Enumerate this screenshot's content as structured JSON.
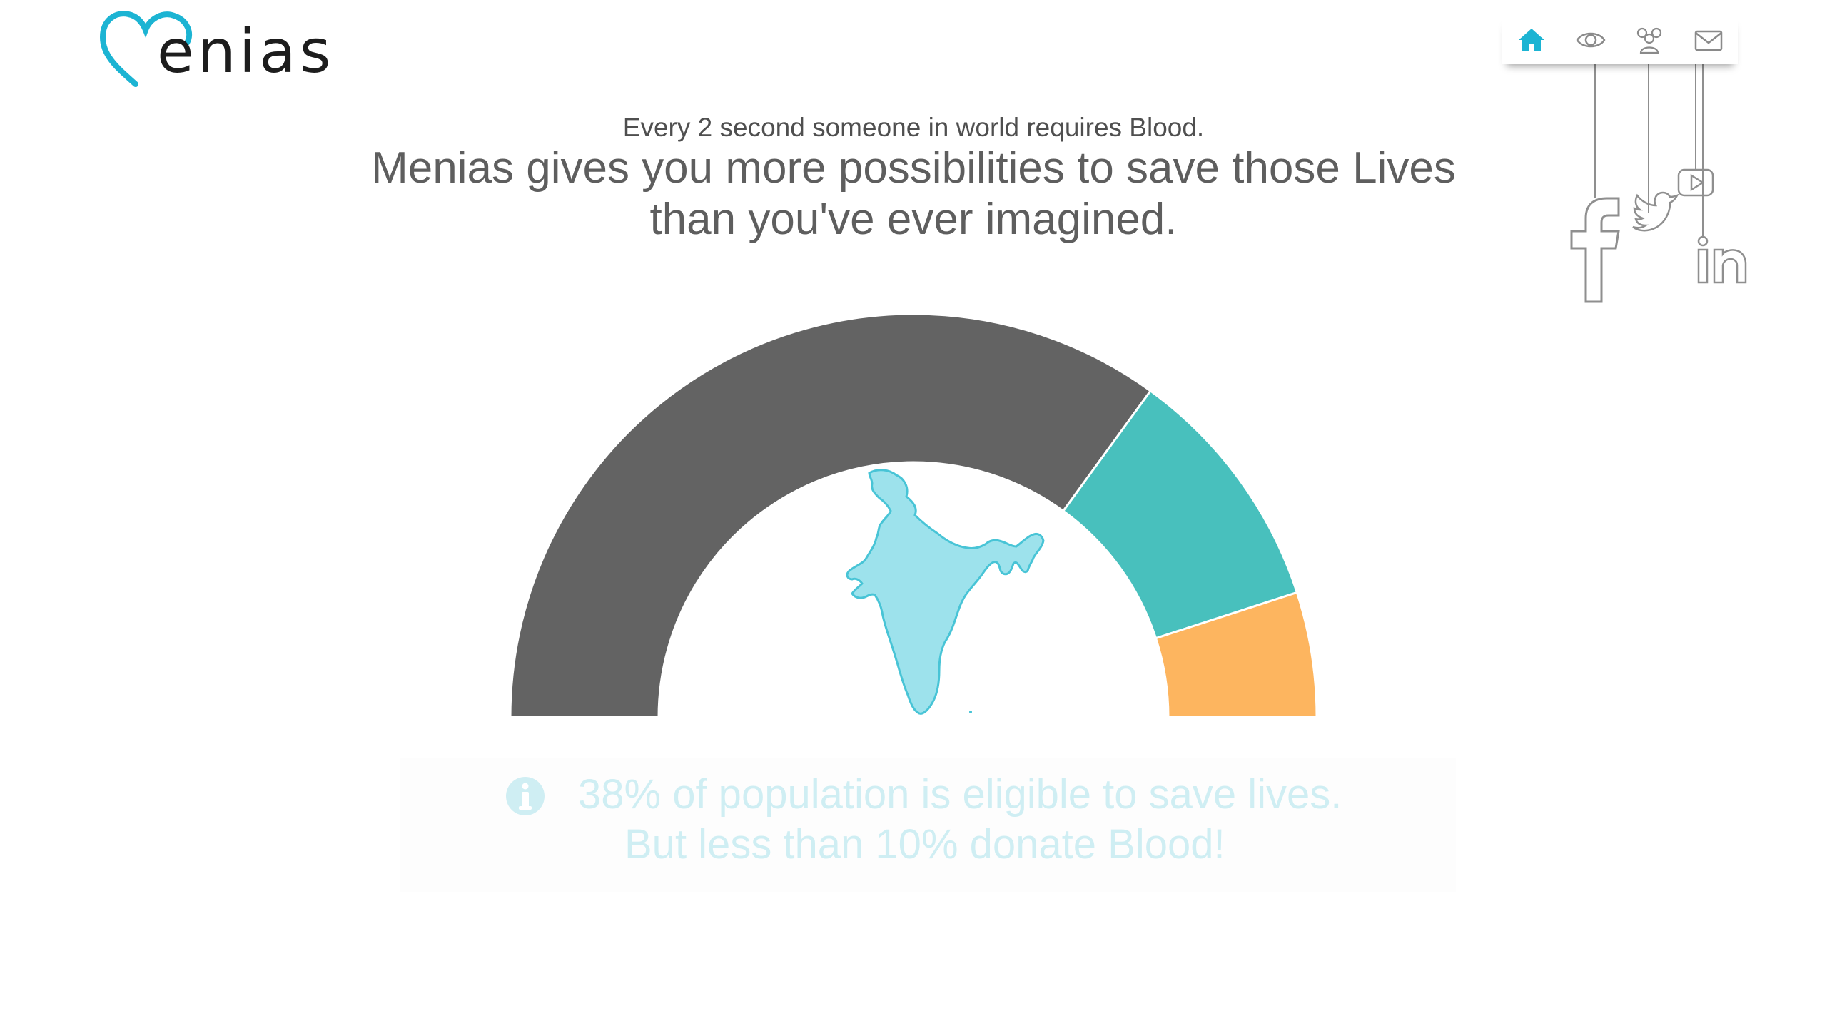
{
  "brand": {
    "logo_text": "enias"
  },
  "nav": {
    "items": [
      {
        "id": "home",
        "icon": "home-icon",
        "active": true
      },
      {
        "id": "about",
        "icon": "eye-icon",
        "active": false
      },
      {
        "id": "community",
        "icon": "group-icon",
        "active": false
      },
      {
        "id": "contact",
        "icon": "mail-icon",
        "active": false
      }
    ]
  },
  "social": [
    "facebook-icon",
    "twitter-icon",
    "youtube-icon",
    "linkedin-icon"
  ],
  "hero": {
    "subtitle": "Every 2 second someone in world requires Blood.",
    "headline_line1": "Menias gives you more possibilities to save those Lives",
    "headline_line2": "than you've ever imagined."
  },
  "chart_data": {
    "type": "pie",
    "style": "semi-donut",
    "series": [
      {
        "value": 70,
        "color": "#636363"
      },
      {
        "value": 20,
        "color": "#48c0bd"
      },
      {
        "value": 10,
        "color": "#fdb55f"
      }
    ],
    "center_image": "india-map"
  },
  "info": {
    "icon": "info-icon",
    "line1": "38% of population is eligible to save lives.",
    "line2": "But less than 10% donate Blood!"
  },
  "colors": {
    "accent": "#1cb4d3",
    "map": "#9de2ec",
    "map_stroke": "#48c4d6"
  }
}
